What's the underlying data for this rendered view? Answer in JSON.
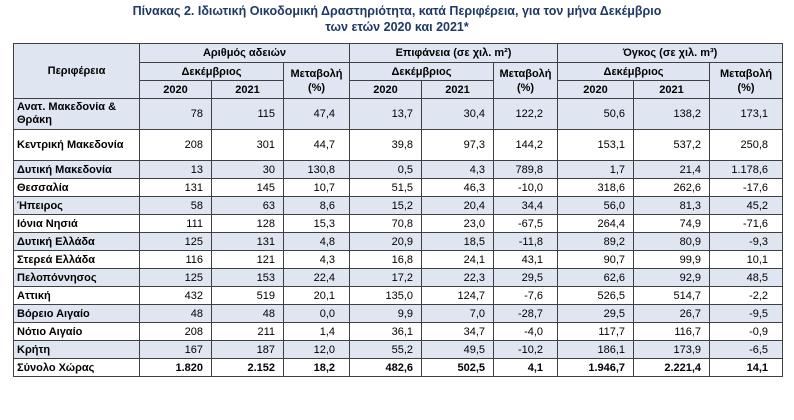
{
  "caption": {
    "line1": "Πίνακας 2.  Ιδιωτική Οικοδομική Δραστηριότητα, κατά Περιφέρεια, για τον μήνα Δεκέμβριο",
    "line2": "των ετών 2020 και 2021*"
  },
  "headers": {
    "region": "Περιφέρεια",
    "group_permits": "Αριθμός αδειών",
    "group_area": "Επιφάνεια (σε χιλ. m²)",
    "group_volume": "Όγκος (σε χιλ. m³)",
    "december": "Δεκέμβριος",
    "change_line1": "Μεταβολή",
    "change_line2": "(%)",
    "year1": "2020",
    "year2": "2021"
  },
  "rows": [
    {
      "region": "Ανατ. Μακεδονία & Θράκη",
      "p20": "78",
      "p21": "115",
      "pc": "47,4",
      "a20": "13,7",
      "a21": "30,4",
      "ac": "122,2",
      "v20": "50,6",
      "v21": "138,2",
      "vc": "173,1"
    },
    {
      "region": "Κεντρική Μακεδονία",
      "p20": "208",
      "p21": "301",
      "pc": "44,7",
      "a20": "39,8",
      "a21": "97,3",
      "ac": "144,2",
      "v20": "153,1",
      "v21": "537,2",
      "vc": "250,8"
    },
    {
      "region": "Δυτική Μακεδονία",
      "p20": "13",
      "p21": "30",
      "pc": "130,8",
      "a20": "0,5",
      "a21": "4,3",
      "ac": "789,8",
      "v20": "1,7",
      "v21": "21,4",
      "vc": "1.178,6"
    },
    {
      "region": "Θεσσαλία",
      "p20": "131",
      "p21": "145",
      "pc": "10,7",
      "a20": "51,5",
      "a21": "46,3",
      "ac": "-10,0",
      "v20": "318,6",
      "v21": "262,6",
      "vc": "-17,6"
    },
    {
      "region": "Ήπειρος",
      "p20": "58",
      "p21": "63",
      "pc": "8,6",
      "a20": "15,2",
      "a21": "20,4",
      "ac": "34,4",
      "v20": "56,0",
      "v21": "81,3",
      "vc": "45,2"
    },
    {
      "region": "Ιόνια Νησιά",
      "p20": "111",
      "p21": "128",
      "pc": "15,3",
      "a20": "70,8",
      "a21": "23,0",
      "ac": "-67,5",
      "v20": "264,4",
      "v21": "74,9",
      "vc": "-71,6"
    },
    {
      "region": "Δυτική Ελλάδα",
      "p20": "125",
      "p21": "131",
      "pc": "4,8",
      "a20": "20,9",
      "a21": "18,5",
      "ac": "-11,8",
      "v20": "89,2",
      "v21": "80,9",
      "vc": "-9,3"
    },
    {
      "region": "Στερεά Ελλάδα",
      "p20": "116",
      "p21": "121",
      "pc": "4,3",
      "a20": "16,8",
      "a21": "24,1",
      "ac": "43,1",
      "v20": "90,7",
      "v21": "99,9",
      "vc": "10,1"
    },
    {
      "region": "Πελοπόννησος",
      "p20": "125",
      "p21": "153",
      "pc": "22,4",
      "a20": "17,2",
      "a21": "22,3",
      "ac": "29,5",
      "v20": "62,6",
      "v21": "92,9",
      "vc": "48,5"
    },
    {
      "region": "Αττική",
      "p20": "432",
      "p21": "519",
      "pc": "20,1",
      "a20": "135,0",
      "a21": "124,7",
      "ac": "-7,6",
      "v20": "526,5",
      "v21": "514,7",
      "vc": "-2,2"
    },
    {
      "region": "Βόρειο Αιγαίο",
      "p20": "48",
      "p21": "48",
      "pc": "0,0",
      "a20": "9,9",
      "a21": "7,0",
      "ac": "-28,7",
      "v20": "29,5",
      "v21": "26,7",
      "vc": "-9,5"
    },
    {
      "region": "Νότιο Αιγαίο",
      "p20": "208",
      "p21": "211",
      "pc": "1,4",
      "a20": "36,1",
      "a21": "34,7",
      "ac": "-4,0",
      "v20": "117,7",
      "v21": "116,7",
      "vc": "-0,9"
    },
    {
      "region": "Κρήτη",
      "p20": "167",
      "p21": "187",
      "pc": "12,0",
      "a20": "55,2",
      "a21": "49,5",
      "ac": "-10,2",
      "v20": "186,1",
      "v21": "173,9",
      "vc": "-6,5"
    }
  ],
  "total": {
    "region": "Σύνολο Χώρας",
    "p20": "1.820",
    "p21": "2.152",
    "pc": "18,2",
    "a20": "482,6",
    "a21": "502,5",
    "ac": "4,1",
    "v20": "1.946,7",
    "v21": "2.221,4",
    "vc": "14,1"
  },
  "colors": {
    "header_fill": "#dfe6f1",
    "caption_text": "#1f3864",
    "border": "#404040"
  }
}
